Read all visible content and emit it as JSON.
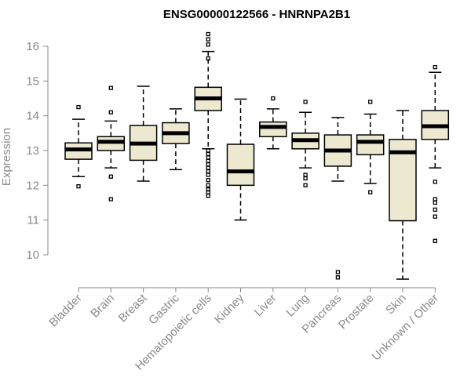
{
  "chart_data": {
    "type": "boxplot",
    "title": "ENSG00000122566 - HNRNPA2B1",
    "xlabel": "",
    "ylabel": "Expression",
    "ylim": [
      9.2,
      16.5
    ],
    "yticks": [
      10,
      11,
      12,
      13,
      14,
      15,
      16
    ],
    "grid": false,
    "box_color": "#ede8d0",
    "categories": [
      "Bladder",
      "Brain",
      "Breast",
      "Gastric",
      "Hematopoietic cells",
      "Kidney",
      "Liver",
      "Lung",
      "Pancreas",
      "Prostate",
      "Skin",
      "Unknown / Other"
    ],
    "boxes": [
      {
        "whisker_low": 12.25,
        "q1": 12.75,
        "median": 13.03,
        "q3": 13.22,
        "whisker_high": 13.9,
        "outliers": [
          14.25,
          11.97
        ]
      },
      {
        "whisker_low": 12.5,
        "q1": 13.0,
        "median": 13.25,
        "q3": 13.4,
        "whisker_high": 13.85,
        "outliers": [
          14.8,
          14.1,
          12.25,
          11.6
        ]
      },
      {
        "whisker_low": 12.12,
        "q1": 12.72,
        "median": 13.2,
        "q3": 13.72,
        "whisker_high": 14.85,
        "outliers": []
      },
      {
        "whisker_low": 12.45,
        "q1": 13.2,
        "median": 13.5,
        "q3": 13.8,
        "whisker_high": 14.2,
        "outliers": []
      },
      {
        "whisker_low": 13.05,
        "q1": 14.15,
        "median": 14.5,
        "q3": 14.82,
        "whisker_high": 15.85,
        "outliers": [
          16.35,
          16.2,
          16.05,
          15.65,
          13.0,
          12.9,
          12.8,
          12.7,
          12.6,
          12.5,
          12.4,
          12.3,
          12.15,
          12.0,
          11.88,
          11.8,
          11.7
        ]
      },
      {
        "whisker_low": 11.0,
        "q1": 12.0,
        "median": 12.4,
        "q3": 13.18,
        "whisker_high": 14.48,
        "outliers": []
      },
      {
        "whisker_low": 13.05,
        "q1": 13.4,
        "median": 13.68,
        "q3": 13.82,
        "whisker_high": 14.2,
        "outliers": [
          14.5
        ]
      },
      {
        "whisker_low": 12.5,
        "q1": 13.05,
        "median": 13.3,
        "q3": 13.5,
        "whisker_high": 14.1,
        "outliers": [
          14.4,
          12.3,
          12.2,
          12.0
        ]
      },
      {
        "whisker_low": 12.12,
        "q1": 12.55,
        "median": 13.0,
        "q3": 13.45,
        "whisker_high": 13.95,
        "outliers": [
          9.5,
          9.35
        ]
      },
      {
        "whisker_low": 12.05,
        "q1": 12.88,
        "median": 13.25,
        "q3": 13.45,
        "whisker_high": 14.05,
        "outliers": [
          14.4,
          11.8
        ]
      },
      {
        "whisker_low": 9.3,
        "q1": 10.98,
        "median": 12.95,
        "q3": 13.32,
        "whisker_high": 14.15,
        "outliers": []
      },
      {
        "whisker_low": 12.5,
        "q1": 13.32,
        "median": 13.7,
        "q3": 14.15,
        "whisker_high": 15.25,
        "outliers": [
          15.4,
          12.1,
          11.6,
          11.5,
          11.3,
          11.1,
          10.4
        ]
      }
    ]
  }
}
